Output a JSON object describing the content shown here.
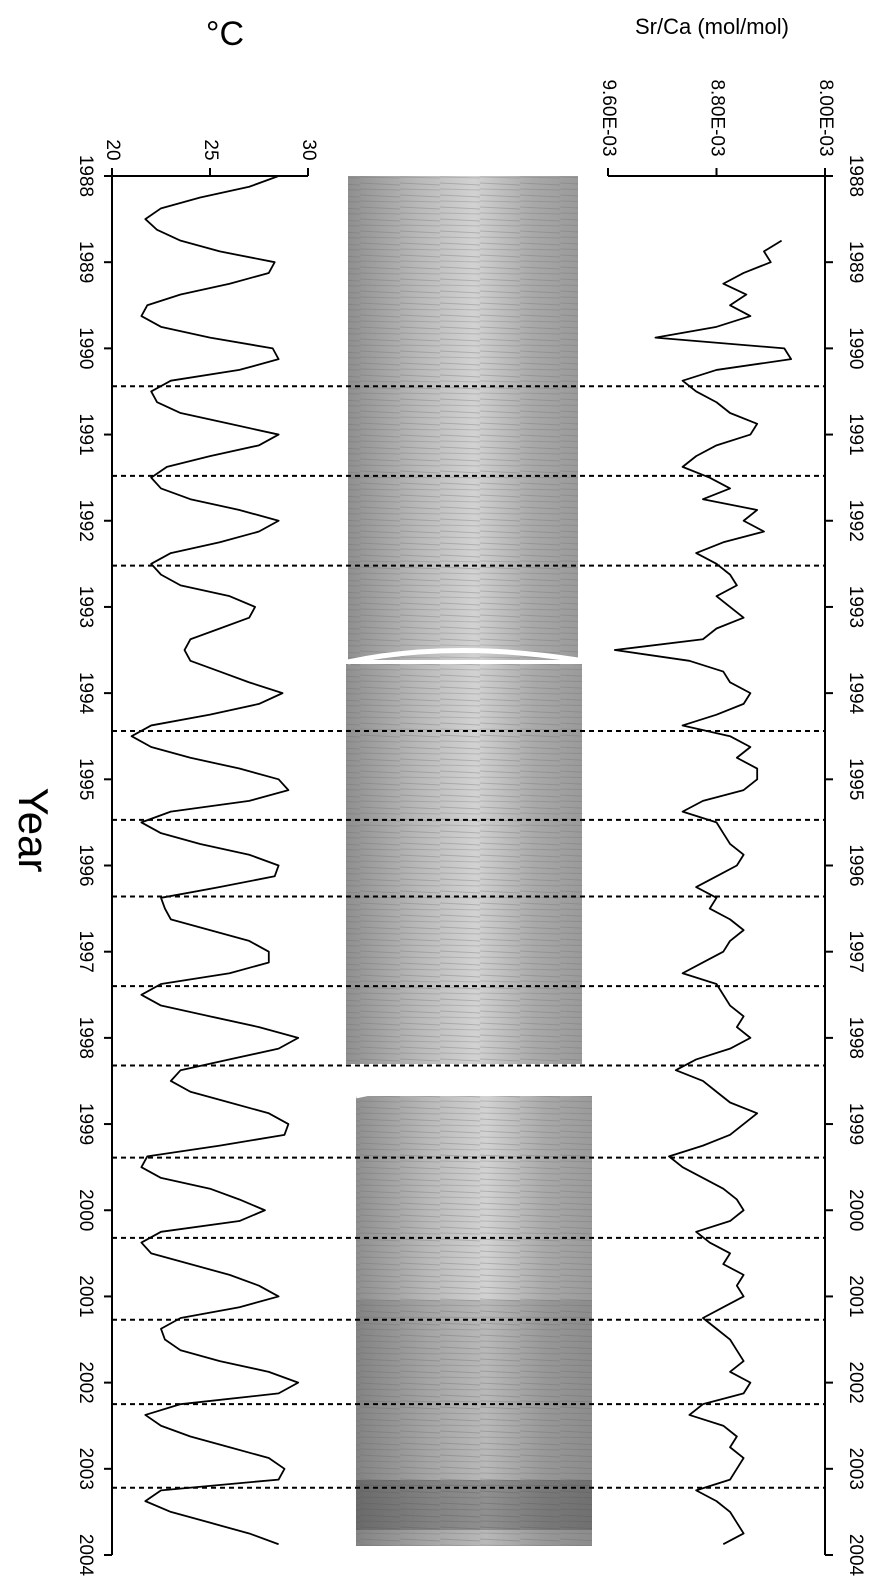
{
  "chart_data": {
    "type": "line",
    "orientation": "vertical",
    "x_label": "Year",
    "xlim": [
      1988,
      2004
    ],
    "xticks": [
      1988,
      1989,
      1990,
      1991,
      1992,
      1993,
      1994,
      1995,
      1996,
      1997,
      1998,
      1999,
      2000,
      2001,
      2002,
      2003,
      2004
    ],
    "ylim": [
      20,
      30
    ],
    "yticks": [
      20,
      25,
      30
    ],
    "y_label": "°C",
    "y2lim": [
      0.0096,
      0.008
    ],
    "y2ticks": [
      {
        "value": 0.0096,
        "label": "9.60E-03"
      },
      {
        "value": 0.0088,
        "label": "8.80E-03"
      },
      {
        "value": 0.008,
        "label": "8.00E-03"
      }
    ],
    "y2_label": "Sr/Ca (mol/mol)",
    "vlines": [
      1990.44,
      1991.48,
      1992.52,
      1994.44,
      1995.47,
      1996.36,
      1997.4,
      1998.32,
      1999.39,
      2000.32,
      2001.27,
      2002.25,
      2003.22
    ],
    "x": [
      1988,
      1988.125,
      1988.25,
      1988.375,
      1988.5,
      1988.625,
      1988.75,
      1988.875,
      1989,
      1989.125,
      1989.25,
      1989.375,
      1989.5,
      1989.625,
      1989.75,
      1989.875,
      1990,
      1990.125,
      1990.25,
      1990.375,
      1990.5,
      1990.625,
      1990.75,
      1990.875,
      1991,
      1991.125,
      1991.25,
      1991.375,
      1991.5,
      1991.625,
      1991.75,
      1991.875,
      1992,
      1992.125,
      1992.25,
      1992.375,
      1992.5,
      1992.625,
      1992.75,
      1992.875,
      1993,
      1993.125,
      1993.25,
      1993.375,
      1993.5,
      1993.625,
      1993.75,
      1993.875,
      1994,
      1994.125,
      1994.25,
      1994.375,
      1994.5,
      1994.625,
      1994.75,
      1994.875,
      1995,
      1995.125,
      1995.25,
      1995.375,
      1995.5,
      1995.625,
      1995.75,
      1995.875,
      1996,
      1996.125,
      1996.25,
      1996.375,
      1996.5,
      1996.625,
      1996.75,
      1996.875,
      1997,
      1997.125,
      1997.25,
      1997.375,
      1997.5,
      1997.625,
      1997.75,
      1997.875,
      1998,
      1998.125,
      1998.25,
      1998.375,
      1998.5,
      1998.625,
      1998.75,
      1998.875,
      1999,
      1999.125,
      1999.25,
      1999.375,
      1999.5,
      1999.625,
      1999.75,
      1999.875,
      2000,
      2000.125,
      2000.25,
      2000.375,
      2000.5,
      2000.625,
      2000.75,
      2000.875,
      2001,
      2001.125,
      2001.25,
      2001.375,
      2001.5,
      2001.625,
      2001.75,
      2001.875,
      2002,
      2002.125,
      2002.25,
      2002.375,
      2002.5,
      2002.625,
      2002.75,
      2002.875,
      2003,
      2003.125,
      2003.25,
      2003.375,
      2003.5,
      2003.625,
      2003.75,
      2003.875
    ],
    "series": [
      {
        "color": "#000000",
        "values": [
          28.5,
          27,
          24.5,
          22.5,
          21.7,
          22.3,
          23.5,
          25.5,
          28.3,
          28,
          26,
          23.5,
          21.8,
          21.5,
          22.5,
          25,
          28.2,
          28.5,
          26.5,
          23,
          22,
          22.3,
          23.5,
          26,
          28.5,
          27.5,
          25,
          22.8,
          22,
          22.5,
          24,
          26.5,
          28.5,
          27.5,
          25.5,
          23,
          22,
          22.5,
          23.5,
          26,
          27.3,
          27,
          25.5,
          24,
          23.7,
          24,
          25.5,
          27,
          28.7,
          27.5,
          25,
          22,
          21,
          22,
          24,
          26.5,
          28.5,
          29,
          27,
          23,
          21.5,
          22.5,
          24.5,
          27,
          28.5,
          28.3,
          25.5,
          22.5,
          22.7,
          23,
          25,
          27,
          28,
          28,
          26,
          22.5,
          21.5,
          22.5,
          25,
          27.5,
          29.5,
          28.5,
          26,
          23.5,
          23,
          24,
          26,
          28,
          29,
          28.8,
          25.5,
          21.8,
          21.5,
          22.5,
          25,
          26.5,
          27.8,
          26.5,
          22.5,
          21.5,
          22,
          24,
          26,
          27.5,
          28.5,
          26.5,
          23.5,
          22.5,
          22.7,
          23.5,
          25.5,
          28,
          29.5,
          28.5,
          23.5,
          21.7,
          22.5,
          24,
          26,
          28,
          28.8,
          28.5,
          22.5,
          21.7,
          23,
          25,
          27,
          28.5
        ]
      },
      {
        "color": "#000000",
        "axis": "y2",
        "values": [
          null,
          null,
          null,
          null,
          null,
          null,
          0.00832,
          0.00845,
          0.0084,
          0.0086,
          0.00875,
          0.00858,
          0.0087,
          0.00855,
          0.0088,
          0.00925,
          0.0083,
          0.00825,
          0.0088,
          0.00905,
          0.00895,
          0.0088,
          0.0087,
          0.0085,
          0.00855,
          0.0088,
          0.00895,
          0.00905,
          0.00885,
          0.0087,
          0.0089,
          0.0085,
          0.0086,
          0.00845,
          0.00875,
          0.00895,
          0.0088,
          0.0087,
          0.00865,
          0.0088,
          0.0087,
          0.0086,
          0.0088,
          0.0089,
          0.00955,
          0.009,
          0.00875,
          0.0087,
          0.00855,
          0.0086,
          0.0088,
          0.00905,
          0.0087,
          0.00855,
          0.00865,
          0.0085,
          0.0085,
          0.0086,
          0.0089,
          0.00905,
          0.0088,
          0.00875,
          0.0087,
          0.0086,
          0.00865,
          0.0088,
          0.00895,
          0.0088,
          0.00885,
          0.0087,
          0.0086,
          0.0087,
          0.00875,
          0.0089,
          0.00905,
          0.0088,
          0.00875,
          0.0087,
          0.0086,
          0.00865,
          0.00855,
          0.0087,
          0.00895,
          0.0091,
          0.0089,
          0.0088,
          0.0087,
          0.0085,
          0.0086,
          0.0087,
          0.0089,
          0.00915,
          0.00905,
          0.0089,
          0.00875,
          0.00865,
          0.0086,
          0.0087,
          0.00895,
          0.00885,
          0.0087,
          0.00875,
          0.0086,
          0.00865,
          0.0086,
          0.00875,
          0.0089,
          0.0088,
          0.0087,
          0.00865,
          0.0086,
          0.0087,
          0.00855,
          0.0086,
          0.0089,
          0.009,
          0.00875,
          0.00865,
          0.0087,
          0.0086,
          0.00865,
          0.0087,
          0.00895,
          0.0088,
          0.0087,
          0.00865,
          0.0086,
          0.00875
        ]
      }
    ]
  }
}
